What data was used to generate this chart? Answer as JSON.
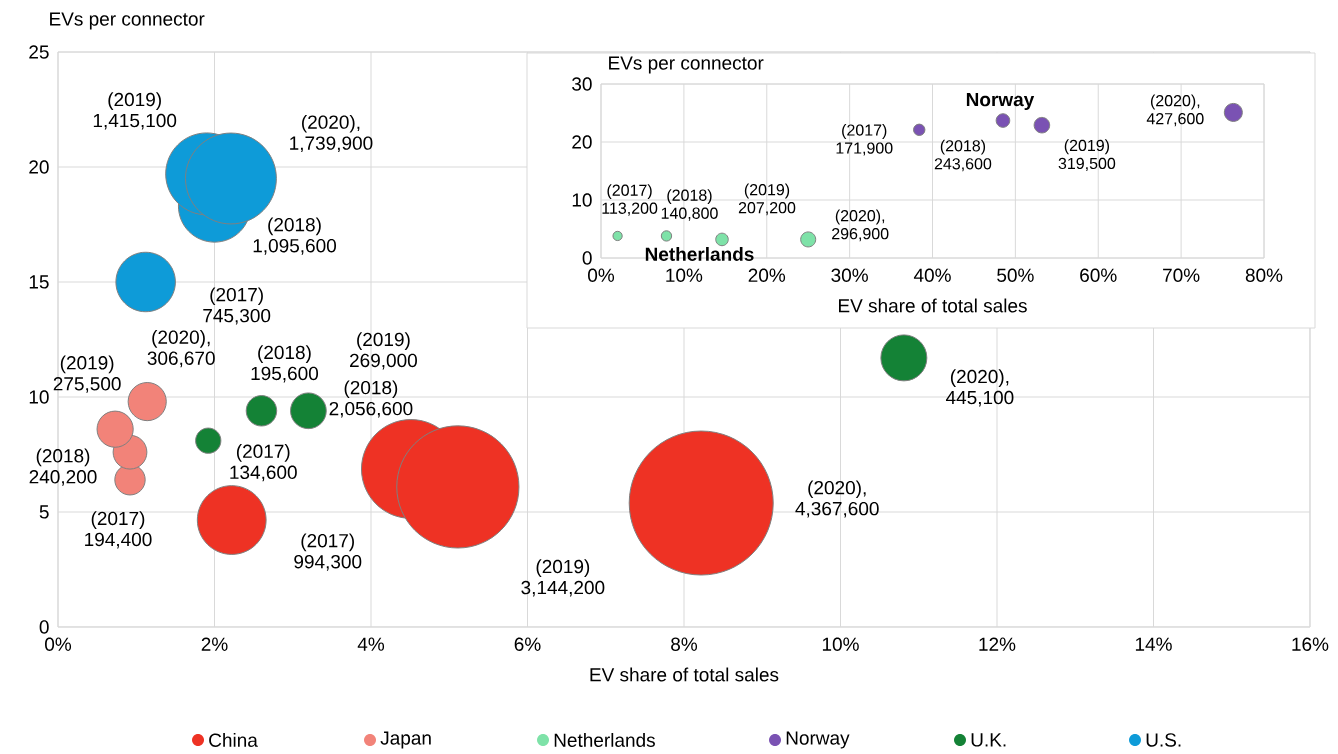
{
  "chart_data": [
    {
      "type": "bubble",
      "xlabel": "EV share of total sales",
      "ylabel": "EVs per connector",
      "xlim": [
        0,
        16
      ],
      "ylim": [
        0,
        25
      ],
      "xticks": [
        {
          "value": 0,
          "label": "0%"
        },
        {
          "value": 2,
          "label": "2%"
        },
        {
          "value": 4,
          "label": "4%"
        },
        {
          "value": 6,
          "label": "6%"
        },
        {
          "value": 8,
          "label": "8%"
        },
        {
          "value": 10,
          "label": "10%"
        },
        {
          "value": 12,
          "label": "12%"
        },
        {
          "value": 14,
          "label": "14%"
        },
        {
          "value": 16,
          "label": "16%"
        }
      ],
      "yticks": [
        0,
        5,
        10,
        15,
        20,
        25
      ],
      "grid": true,
      "legend": "bottom",
      "series": [
        {
          "name": "China",
          "color": "#ee3224",
          "x": [
            2.22,
            4.51,
            5.11,
            8.22
          ],
          "values": [
            4.65,
            6.87,
            6.09,
            5.39
          ],
          "sizes": [
            0.228,
            0.471,
            0.72,
            1
          ],
          "value_labels": [
            "(2017) 994,300",
            "(2018) 2,056,600",
            "(2019) 3,144,200",
            "(2020), 4,367,600"
          ]
        },
        {
          "name": "Japan",
          "color": "#f28379",
          "x": [
            0.92,
            0.92,
            0.73,
            1.14
          ],
          "values": [
            6.4,
            7.6,
            8.6,
            9.8
          ],
          "sizes": [
            0.0445,
            0.055,
            0.0631,
            0.0702
          ],
          "value_labels": [
            "(2017) 194,400",
            "(2018) 240,200",
            "(2019) 275,500",
            "(2020), 306,670"
          ]
        },
        {
          "name": "U.K.",
          "color": "#148236",
          "x": [
            1.92,
            2.6,
            3.2,
            10.81
          ],
          "values": [
            8.1,
            9.4,
            9.4,
            11.7
          ],
          "sizes": [
            0.0308,
            0.0448,
            0.0616,
            0.1019
          ],
          "value_labels": [
            "(2017) 134,600",
            "(2018) 195,600",
            "(2019) 269,000",
            "(2020), 445,100"
          ]
        },
        {
          "name": "U.S.",
          "color": "#0e9bd8",
          "x": [
            1.12,
            2.0,
            1.9,
            2.21
          ],
          "values": [
            15.0,
            18.3,
            19.7,
            19.5
          ],
          "sizes": [
            0.1706,
            0.2508,
            0.324,
            0.3984
          ],
          "value_labels": [
            "(2017) 745,300",
            "(2018) 1,095,600",
            "(2019) 1,415,100",
            "(2020), 1,739,900"
          ]
        }
      ]
    },
    {
      "type": "bubble",
      "xlabel": "EV share of total sales",
      "ylabel": "EVs per connector",
      "xlim": [
        0,
        80
      ],
      "ylim": [
        0,
        30
      ],
      "xticks": [
        {
          "value": 0,
          "label": "0%"
        },
        {
          "value": 10,
          "label": "10%"
        },
        {
          "value": 20,
          "label": "20%"
        },
        {
          "value": 30,
          "label": "30%"
        },
        {
          "value": 40,
          "label": "40%"
        },
        {
          "value": 50,
          "label": "50%"
        },
        {
          "value": 60,
          "label": "60%"
        },
        {
          "value": 70,
          "label": "70%"
        },
        {
          "value": 80,
          "label": "80%"
        }
      ],
      "yticks": [
        0,
        10,
        20,
        30
      ],
      "grid": true,
      "legend": "bottom",
      "series": [
        {
          "name": "Netherlands",
          "color": "#7ee2a8",
          "x": [
            2.0,
            7.9,
            14.6,
            25.0
          ],
          "values": [
            3.8,
            3.8,
            3.2,
            3.2
          ],
          "sizes": [
            0.2647,
            0.3293,
            0.4846,
            0.6943
          ],
          "value_labels": [
            "(2017) 113,200",
            "(2018) 140,800",
            "(2019) 207,200",
            "(2020), 296,900"
          ]
        },
        {
          "name": "Norway",
          "color": "#7a52b3",
          "x": [
            38.4,
            48.5,
            53.2,
            76.3
          ],
          "values": [
            22.1,
            23.7,
            22.9,
            25.1
          ],
          "sizes": [
            0.402,
            0.5697,
            0.7472,
            1
          ],
          "value_labels": [
            "(2017) 171,900",
            "(2018) 243,600",
            "(2019) 319,500",
            "(2020), 427,600"
          ]
        }
      ]
    }
  ]
}
